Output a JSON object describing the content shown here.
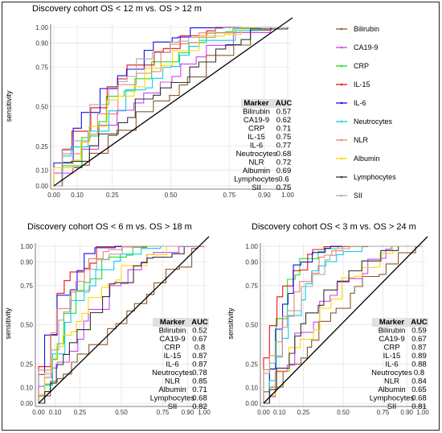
{
  "figure": {
    "markers": [
      {
        "name": "Bilirubin",
        "color": "#8B5A2B"
      },
      {
        "name": "CA19-9",
        "color": "#CC44EE"
      },
      {
        "name": "CRP",
        "color": "#22DD22"
      },
      {
        "name": "IL-15",
        "color": "#EE1111"
      },
      {
        "name": "IL-6",
        "color": "#1111EE"
      },
      {
        "name": "Neutrocytes",
        "color": "#11CCEE"
      },
      {
        "name": "NLR",
        "color": "#F08070"
      },
      {
        "name": "Albumin",
        "color": "#FFD700"
      },
      {
        "name": "Lymphocytes",
        "color": "#333333"
      },
      {
        "name": "SII",
        "color": "#AAAAAA"
      }
    ],
    "auc_table_headers": [
      "Marker",
      "AUC"
    ]
  },
  "chart_data": [
    {
      "type": "line",
      "title": "Discovery cohort OS < 12 m vs. OS > 12 m",
      "ylabel": "sensitivity",
      "xlabel": "",
      "xticks": [
        "0.00",
        "0.10",
        "0.25",
        "0.50",
        "0.75",
        "0.90",
        "1.00"
      ],
      "yticks": [
        "0.00",
        "0.10",
        "0.25",
        "0.50",
        "0.75",
        "0.90",
        "1.00"
      ],
      "grid": true,
      "legend": "right",
      "series": [
        {
          "name": "Bilirubin",
          "auc": "0.57"
        },
        {
          "name": "CA19-9",
          "auc": "0.62"
        },
        {
          "name": "CRP",
          "auc": "0.71"
        },
        {
          "name": "IL-15",
          "auc": "0.75"
        },
        {
          "name": "IL-6",
          "auc": "0.77"
        },
        {
          "name": "Neutrocytes",
          "auc": "0.68"
        },
        {
          "name": "NLR",
          "auc": "0.72"
        },
        {
          "name": "Albumin",
          "auc": "0.69"
        },
        {
          "name": "Lymphocytes",
          "auc": "0.6"
        },
        {
          "name": "SII",
          "auc": "0.75"
        }
      ]
    },
    {
      "type": "line",
      "title": "Discovery cohort OS < 6 m vs. OS > 18 m",
      "ylabel": "sensitivity",
      "xlabel": "",
      "xticks": [
        "0.00",
        "0.10",
        "0.25",
        "0.50",
        "0.75",
        "0.90",
        "1.00"
      ],
      "yticks": [
        "0.00",
        "0.10",
        "0.25",
        "0.50",
        "0.75",
        "0.90",
        "1.00"
      ],
      "grid": true,
      "series": [
        {
          "name": "Bilirubin",
          "auc": "0.52"
        },
        {
          "name": "CA19-9",
          "auc": "0.67"
        },
        {
          "name": "CRP",
          "auc": "0.8"
        },
        {
          "name": "IL-15",
          "auc": "0.87"
        },
        {
          "name": "IL-6",
          "auc": "0.87"
        },
        {
          "name": "Neutrocytes",
          "auc": "0.78"
        },
        {
          "name": "NLR",
          "auc": "0.85"
        },
        {
          "name": "Albumin",
          "auc": "0.71"
        },
        {
          "name": "Lymphocytes",
          "auc": "0.68"
        },
        {
          "name": "SII",
          "auc": "0.82"
        }
      ]
    },
    {
      "type": "line",
      "title": "Discovery cohort OS < 3 m vs. OS > 24 m",
      "ylabel": "sensitivity",
      "xlabel": "",
      "xticks": [
        "0.00",
        "0.10",
        "0.25",
        "0.50",
        "0.75",
        "0.90",
        "1.00"
      ],
      "yticks": [
        "0.00",
        "0.10",
        "0.25",
        "0.50",
        "0.75",
        "0.90",
        "1.00"
      ],
      "grid": true,
      "series": [
        {
          "name": "Bilirubin",
          "auc": "0.59"
        },
        {
          "name": "CA19-9",
          "auc": "0.67"
        },
        {
          "name": "CRP",
          "auc": "0.87"
        },
        {
          "name": "IL-15",
          "auc": "0.89"
        },
        {
          "name": "IL-6",
          "auc": "0.88"
        },
        {
          "name": "Neutrocytes",
          "auc": "0.8"
        },
        {
          "name": "NLR",
          "auc": "0.84"
        },
        {
          "name": "Albumin",
          "auc": "0.65"
        },
        {
          "name": "Lymphocytes",
          "auc": "0.68"
        },
        {
          "name": "SII",
          "auc": "0.81"
        }
      ]
    }
  ]
}
